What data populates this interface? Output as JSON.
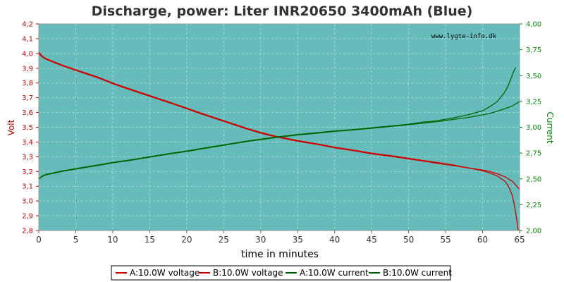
{
  "chart_data": {
    "type": "line",
    "title": "Discharge, power: Liter INR20650 3400mAh (Blue)",
    "watermark": "www.lygte-info.dk",
    "xlabel": "time in minutes",
    "ylabel_left": "Volt",
    "ylabel_right": "Current",
    "xlim": [
      0,
      65
    ],
    "ylim_left": [
      2.8,
      4.2
    ],
    "ylim_right": [
      2.0,
      4.0
    ],
    "x_ticks": [
      "0",
      "5",
      "10",
      "15",
      "20",
      "25",
      "30",
      "35",
      "40",
      "45",
      "50",
      "55",
      "60",
      "65"
    ],
    "y_left_ticks": [
      "2,8",
      "2,9",
      "3,0",
      "3,1",
      "3,2",
      "3,3",
      "3,4",
      "3,5",
      "3,6",
      "3,7",
      "3,8",
      "3,9",
      "4,0",
      "4,1",
      "4,2"
    ],
    "y_right_ticks": [
      "2,00",
      "2,25",
      "2,50",
      "2,75",
      "3,00",
      "3,25",
      "3,50",
      "3,75",
      "4,00"
    ],
    "grid": true,
    "legend_position": "bottom",
    "colors": {
      "plot_bg": "#66bbbb",
      "voltage": "#cc0000",
      "current": "#006600",
      "left_axis": "#cc0000",
      "right_axis": "#008800",
      "grid": "#a8d8d8"
    },
    "series": [
      {
        "name": "A:10.0W voltage",
        "axis": "left",
        "kind": "voltage",
        "points": [
          [
            0,
            4.01
          ],
          [
            0.5,
            3.98
          ],
          [
            1,
            3.965
          ],
          [
            2,
            3.945
          ],
          [
            3,
            3.925
          ],
          [
            5,
            3.89
          ],
          [
            8,
            3.84
          ],
          [
            10,
            3.8
          ],
          [
            12,
            3.765
          ],
          [
            15,
            3.715
          ],
          [
            18,
            3.665
          ],
          [
            20,
            3.63
          ],
          [
            22,
            3.595
          ],
          [
            25,
            3.545
          ],
          [
            28,
            3.495
          ],
          [
            30,
            3.465
          ],
          [
            32,
            3.44
          ],
          [
            35,
            3.41
          ],
          [
            38,
            3.385
          ],
          [
            40,
            3.365
          ],
          [
            42,
            3.35
          ],
          [
            45,
            3.325
          ],
          [
            48,
            3.305
          ],
          [
            50,
            3.29
          ],
          [
            52,
            3.275
          ],
          [
            54,
            3.26
          ],
          [
            56,
            3.245
          ],
          [
            58,
            3.225
          ],
          [
            60,
            3.205
          ],
          [
            61,
            3.19
          ],
          [
            62,
            3.17
          ],
          [
            63,
            3.135
          ],
          [
            63.5,
            3.1
          ],
          [
            64,
            3.04
          ],
          [
            64.3,
            2.97
          ],
          [
            64.6,
            2.88
          ],
          [
            64.8,
            2.8
          ]
        ]
      },
      {
        "name": "B:10.0W voltage",
        "axis": "left",
        "kind": "voltage",
        "points": [
          [
            0,
            4.0
          ],
          [
            0.5,
            3.975
          ],
          [
            1,
            3.96
          ],
          [
            2,
            3.94
          ],
          [
            3,
            3.92
          ],
          [
            5,
            3.885
          ],
          [
            8,
            3.835
          ],
          [
            10,
            3.795
          ],
          [
            12,
            3.76
          ],
          [
            15,
            3.71
          ],
          [
            18,
            3.66
          ],
          [
            20,
            3.625
          ],
          [
            22,
            3.59
          ],
          [
            25,
            3.54
          ],
          [
            28,
            3.49
          ],
          [
            30,
            3.46
          ],
          [
            32,
            3.435
          ],
          [
            35,
            3.405
          ],
          [
            38,
            3.38
          ],
          [
            40,
            3.36
          ],
          [
            42,
            3.345
          ],
          [
            45,
            3.32
          ],
          [
            48,
            3.3
          ],
          [
            50,
            3.285
          ],
          [
            52,
            3.27
          ],
          [
            54,
            3.255
          ],
          [
            56,
            3.24
          ],
          [
            58,
            3.225
          ],
          [
            60,
            3.21
          ],
          [
            61,
            3.2
          ],
          [
            62,
            3.185
          ],
          [
            63,
            3.165
          ],
          [
            64,
            3.135
          ],
          [
            65,
            3.08
          ]
        ]
      },
      {
        "name": "A:10.0W current",
        "axis": "right",
        "kind": "current",
        "points": [
          [
            0,
            2.5
          ],
          [
            0.5,
            2.53
          ],
          [
            1,
            2.545
          ],
          [
            2,
            2.56
          ],
          [
            3,
            2.575
          ],
          [
            5,
            2.6
          ],
          [
            8,
            2.635
          ],
          [
            10,
            2.66
          ],
          [
            12,
            2.68
          ],
          [
            15,
            2.715
          ],
          [
            18,
            2.75
          ],
          [
            20,
            2.77
          ],
          [
            22,
            2.795
          ],
          [
            25,
            2.83
          ],
          [
            28,
            2.865
          ],
          [
            30,
            2.885
          ],
          [
            32,
            2.905
          ],
          [
            35,
            2.93
          ],
          [
            38,
            2.95
          ],
          [
            40,
            2.965
          ],
          [
            42,
            2.975
          ],
          [
            45,
            2.995
          ],
          [
            48,
            3.015
          ],
          [
            50,
            3.03
          ],
          [
            52,
            3.05
          ],
          [
            54,
            3.065
          ],
          [
            56,
            3.09
          ],
          [
            58,
            3.12
          ],
          [
            60,
            3.16
          ],
          [
            61,
            3.2
          ],
          [
            62,
            3.25
          ],
          [
            63,
            3.34
          ],
          [
            63.5,
            3.41
          ],
          [
            64,
            3.5
          ],
          [
            64.3,
            3.56
          ],
          [
            64.5,
            3.58
          ]
        ]
      },
      {
        "name": "B:10.0W current",
        "axis": "right",
        "kind": "current",
        "points": [
          [
            0,
            2.5
          ],
          [
            0.5,
            2.525
          ],
          [
            1,
            2.54
          ],
          [
            2,
            2.555
          ],
          [
            3,
            2.57
          ],
          [
            5,
            2.595
          ],
          [
            8,
            2.63
          ],
          [
            10,
            2.655
          ],
          [
            12,
            2.675
          ],
          [
            15,
            2.71
          ],
          [
            18,
            2.745
          ],
          [
            20,
            2.765
          ],
          [
            22,
            2.79
          ],
          [
            25,
            2.825
          ],
          [
            28,
            2.86
          ],
          [
            30,
            2.88
          ],
          [
            32,
            2.9
          ],
          [
            35,
            2.925
          ],
          [
            38,
            2.945
          ],
          [
            40,
            2.96
          ],
          [
            42,
            2.97
          ],
          [
            45,
            2.99
          ],
          [
            48,
            3.01
          ],
          [
            50,
            3.025
          ],
          [
            52,
            3.04
          ],
          [
            54,
            3.055
          ],
          [
            56,
            3.075
          ],
          [
            58,
            3.095
          ],
          [
            60,
            3.12
          ],
          [
            61,
            3.135
          ],
          [
            62,
            3.155
          ],
          [
            63,
            3.18
          ],
          [
            64,
            3.205
          ],
          [
            65,
            3.25
          ]
        ]
      }
    ]
  }
}
